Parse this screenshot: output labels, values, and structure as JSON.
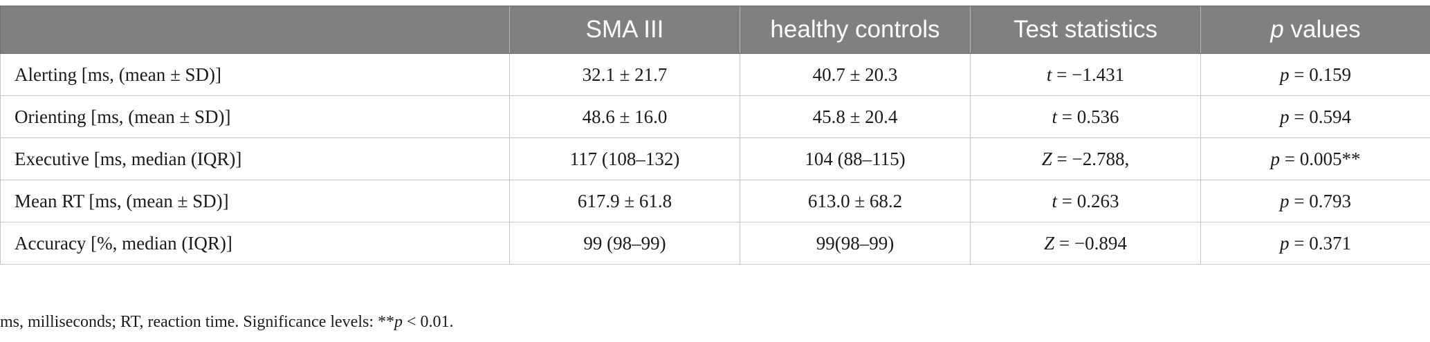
{
  "table": {
    "headers": [
      {
        "text": "",
        "italic_prefix": "",
        "suffix": ""
      },
      {
        "text": "SMA III"
      },
      {
        "text": "healthy controls"
      },
      {
        "text": "Test statistics"
      },
      {
        "italic_prefix": "p",
        "suffix": " values"
      }
    ],
    "rows": [
      {
        "label": "Alerting [ms, (mean ± SD)]",
        "sma": "32.1 ± 21.7",
        "controls": "40.7 ± 20.3",
        "stat_symbol": "t",
        "stat_value": " = −1.431",
        "p_symbol": "p",
        "p_value": " = 0.159"
      },
      {
        "label": "Orienting [ms, (mean ± SD)]",
        "sma": "48.6 ± 16.0",
        "controls": "45.8 ± 20.4",
        "stat_symbol": "t",
        "stat_value": " = 0.536",
        "p_symbol": "p",
        "p_value": " = 0.594"
      },
      {
        "label": "Executive [ms, median (IQR)]",
        "sma": "117 (108–132)",
        "controls": "104 (88–115)",
        "stat_symbol": "Z",
        "stat_value": " = −2.788,",
        "p_symbol": "p",
        "p_value": " = 0.005**"
      },
      {
        "label": "Mean RT [ms, (mean ± SD)]",
        "sma": "617.9 ± 61.8",
        "controls": "613.0 ± 68.2",
        "stat_symbol": "t",
        "stat_value": " = 0.263",
        "p_symbol": "p",
        "p_value": " = 0.793"
      },
      {
        "label": "Accuracy [%, median (IQR)]",
        "sma": "99 (98–99)",
        "controls": "99(98–99)",
        "stat_symbol": "Z",
        "stat_value": " = −0.894",
        "p_symbol": "p",
        "p_value": " = 0.371"
      }
    ]
  },
  "footnote": {
    "text_before": "ms, milliseconds; RT, reaction time. Significance levels: **",
    "italic": "p",
    "text_after": " < 0.01."
  },
  "colors": {
    "header_bg": "#808080",
    "header_text": "#ffffff",
    "grid_line": "#c4c4c4"
  }
}
